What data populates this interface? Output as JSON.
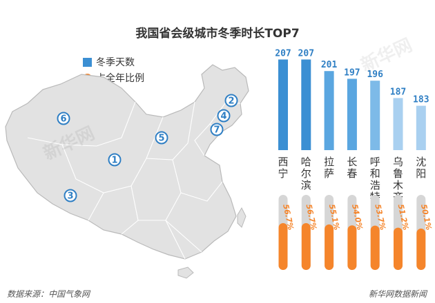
{
  "title": "我国省会级城市冬季时长TOP7",
  "legend": {
    "days_label": "冬季天数",
    "ratio_label": "占全年比例"
  },
  "footer": {
    "source": "数据来源：中国气象网",
    "brand": "新华网数据新闻"
  },
  "watermark": "新华网",
  "map_markers": [
    "1",
    "2",
    "3",
    "4",
    "5",
    "6",
    "7"
  ],
  "colors": {
    "bar_dark": "#3b8fd3",
    "bar_light": "#a9d0f0",
    "ratio": "#f5852b",
    "track": "#d6d6d6",
    "map_fill": "#e2e2e2",
    "map_stroke": "#b9b9b9"
  },
  "chart_data": {
    "type": "bar",
    "title": "我国省会级城市冬季时长TOP7",
    "categories": [
      "西宁",
      "哈尔滨",
      "拉萨",
      "长春",
      "呼和浩特",
      "乌鲁木齐",
      "沈阳"
    ],
    "series": [
      {
        "name": "冬季天数",
        "values": [
          207,
          207,
          201,
          197,
          196,
          187,
          183
        ]
      },
      {
        "name": "占全年比例",
        "values": [
          56.7,
          56.7,
          55.1,
          54.0,
          53.7,
          51.2,
          50.1
        ],
        "labels": [
          "56.7%",
          "56.7%",
          "55.1%",
          "54.0%",
          "53.7%",
          "51.2%",
          "50.1%"
        ]
      }
    ],
    "ylim": [
      160,
      210
    ]
  }
}
